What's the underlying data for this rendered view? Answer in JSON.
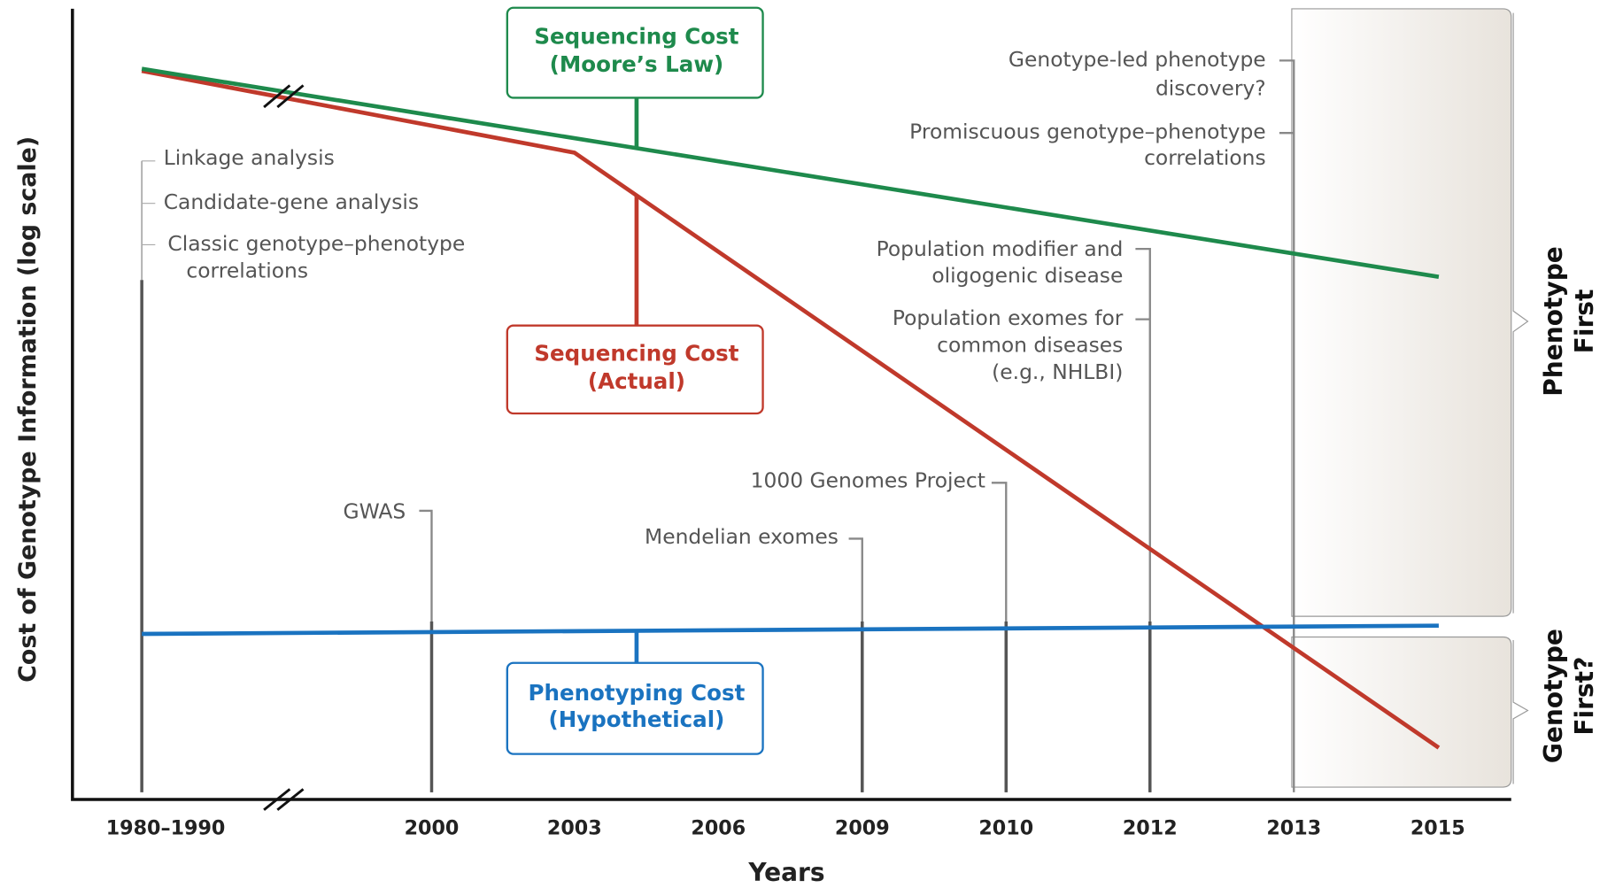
{
  "y_axis_label": "Cost of Genotype Information (log scale)",
  "x_axis_label": "Years",
  "years": [
    "1980–1990",
    "2000",
    "2003",
    "2006",
    "2009",
    "2010",
    "2012",
    "2013",
    "2015"
  ],
  "boxes": [
    {
      "lines": [
        "Sequencing Cost",
        "(Moore’s Law)"
      ]
    },
    {
      "lines": [
        "Sequencing Cost",
        "(Actual)"
      ]
    },
    {
      "lines": [
        "Phenotyping Cost",
        "(Hypothetical)"
      ]
    }
  ],
  "events": [
    {
      "lines": [
        "Linkage analysis"
      ]
    },
    {
      "lines": [
        "Candidate-gene analysis"
      ]
    },
    {
      "lines": [
        "Classic genotype–phenotype",
        "correlations"
      ]
    },
    {
      "lines": [
        "GWAS"
      ]
    },
    {
      "lines": [
        "Mendelian exomes"
      ]
    },
    {
      "lines": [
        "1000 Genomes Project"
      ]
    },
    {
      "lines": [
        "Population modifier and",
        "oligogenic disease"
      ]
    },
    {
      "lines": [
        "Population exomes for",
        "common diseases",
        "(e.g., NHLBI)"
      ]
    },
    {
      "lines": [
        "Genotype-led phenotype",
        "discovery?"
      ]
    },
    {
      "lines": [
        "Promiscuous genotype–phenotype",
        "correlations"
      ]
    }
  ],
  "phases": [
    {
      "lines": [
        "Phenotype",
        "First"
      ]
    },
    {
      "lines": [
        "Genotype",
        "First?"
      ]
    }
  ]
}
